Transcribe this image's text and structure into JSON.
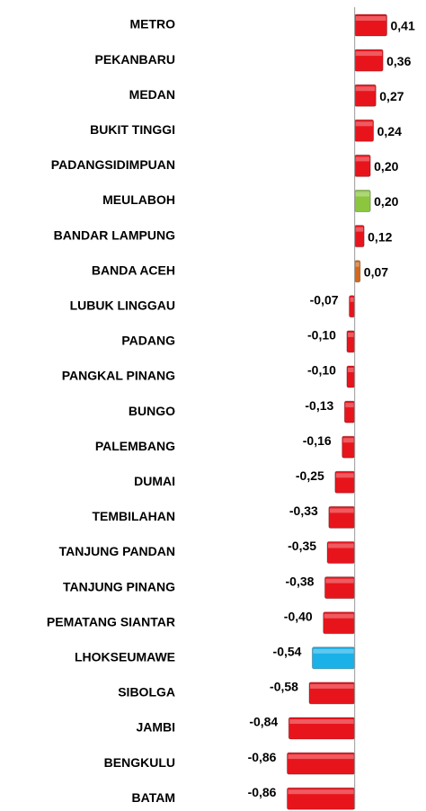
{
  "chart_data": {
    "type": "hbar",
    "categories": [
      "METRO",
      "PEKANBARU",
      "MEDAN",
      "BUKIT TINGGI",
      "PADANGSIDIMPUAN",
      "MEULABOH",
      "BANDAR LAMPUNG",
      "BANDA ACEH",
      "LUBUK LINGGAU",
      "PADANG",
      "PANGKAL PINANG",
      "BUNGO",
      "PALEMBANG",
      "DUMAI",
      "TEMBILAHAN",
      "TANJUNG PANDAN",
      "TANJUNG PINANG",
      "PEMATANG SIANTAR",
      "LHOKSEUMAWE",
      "SIBOLGA",
      "JAMBI",
      "BENGKULU",
      "BATAM"
    ],
    "values": [
      0.41,
      0.36,
      0.27,
      0.24,
      0.2,
      0.2,
      0.12,
      0.07,
      -0.07,
      -0.1,
      -0.1,
      -0.13,
      -0.16,
      -0.25,
      -0.33,
      -0.35,
      -0.38,
      -0.4,
      -0.54,
      -0.58,
      -0.84,
      -0.86,
      -0.86
    ],
    "value_labels": [
      "0,41",
      "0,36",
      "0,27",
      "0,24",
      "0,20",
      "0,20",
      "0,12",
      "0,07",
      "-0,07",
      "-0,10",
      "-0,10",
      "-0,13",
      "-0,16",
      "-0,25",
      "-0,33",
      "-0,35",
      "-0,38",
      "-0,40",
      "-0,54",
      "-0,58",
      "-0,84",
      "-0,86",
      "-0,86"
    ],
    "colors": [
      "#e8141c",
      "#e8141c",
      "#e8141c",
      "#e8141c",
      "#e8141c",
      "#8cc63f",
      "#e8141c",
      "#d2691e",
      "#e8141c",
      "#e8141c",
      "#e8141c",
      "#e8141c",
      "#e8141c",
      "#e8141c",
      "#e8141c",
      "#e8141c",
      "#e8141c",
      "#e8141c",
      "#1ab0e8",
      "#e8141c",
      "#e8141c",
      "#e8141c",
      "#e8141c"
    ],
    "xlim": [
      -0.9,
      0.45
    ]
  }
}
